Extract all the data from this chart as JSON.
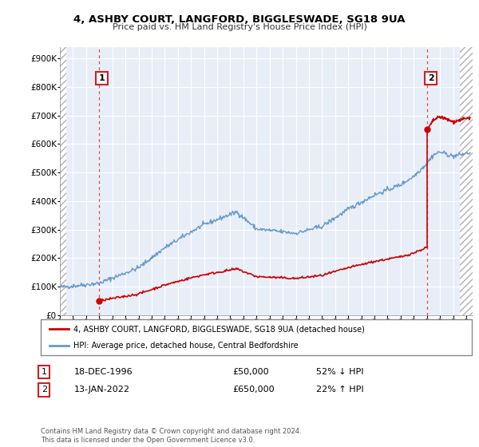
{
  "title": "4, ASHBY COURT, LANGFORD, BIGGLESWADE, SG18 9UA",
  "subtitle": "Price paid vs. HM Land Registry's House Price Index (HPI)",
  "purchase1_date": "18-DEC-1996",
  "purchase1_price": 50000,
  "purchase2_date": "13-JAN-2022",
  "purchase2_price": 650000,
  "legend_line1": "4, ASHBY COURT, LANGFORD, BIGGLESWADE, SG18 9UA (detached house)",
  "legend_line2": "HPI: Average price, detached house, Central Bedfordshire",
  "footer": "Contains HM Land Registry data © Crown copyright and database right 2024.\nThis data is licensed under the Open Government Licence v3.0.",
  "red_color": "#cc0000",
  "blue_color": "#6699cc",
  "plot_bg": "#e8eef8",
  "ytick_labels": [
    "£0",
    "£100K",
    "£200K",
    "£300K",
    "£400K",
    "£500K",
    "£600K",
    "£700K",
    "£800K",
    "£900K"
  ],
  "yticks": [
    0,
    100000,
    200000,
    300000,
    400000,
    500000,
    600000,
    700000,
    800000,
    900000
  ],
  "xmin": 1994.0,
  "xmax": 2025.5,
  "ymin": 0,
  "ymax": 940000,
  "table_row1": [
    "1",
    "18-DEC-1996",
    "£50,000",
    "52% ↓ HPI"
  ],
  "table_row2": [
    "2",
    "13-JAN-2022",
    "£650,000",
    "22% ↑ HPI"
  ]
}
